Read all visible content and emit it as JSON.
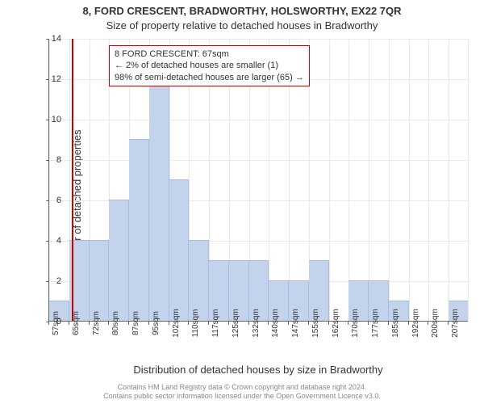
{
  "title": "8, FORD CRESCENT, BRADWORTHY, HOLSWORTHY, EX22 7QR",
  "subtitle": "Size of property relative to detached houses in Bradworthy",
  "ylabel": "Number of detached properties",
  "xlabel": "Distribution of detached houses by size in Bradworthy",
  "footer_line1": "Contains HM Land Registry data © Crown copyright and database right 2024.",
  "footer_line2": "Contains public sector information licensed under the Open Government Licence v3.0.",
  "chart": {
    "type": "histogram",
    "ylim": [
      0,
      14
    ],
    "ytick_step": 2,
    "tick_fontsize": 11,
    "xtick_labels": [
      "57sqm",
      "65sqm",
      "72sqm",
      "80sqm",
      "87sqm",
      "95sqm",
      "102sqm",
      "110sqm",
      "117sqm",
      "125sqm",
      "132sqm",
      "140sqm",
      "147sqm",
      "155sqm",
      "162sqm",
      "170sqm",
      "177sqm",
      "185sqm",
      "192sqm",
      "200sqm",
      "207sqm"
    ],
    "bar_values": [
      1,
      4,
      4,
      6,
      9,
      12,
      7,
      4,
      3,
      3,
      3,
      2,
      2,
      3,
      0,
      2,
      2,
      1,
      0,
      0,
      1
    ],
    "bar_color": "#c3d3ec",
    "bar_border_color": "#a9bde0",
    "background_color": "#ffffff",
    "grid_color": "#e8e8e8",
    "marker_color": "#cc0000",
    "marker_position_index": 1.15
  },
  "annotation": {
    "line1": "8 FORD CRESCENT: 67sqm",
    "line2": "← 2% of detached houses are smaller (1)",
    "line3": "98% of semi-detached houses are larger (65) →",
    "border_color": "#cc0000",
    "fontsize": 11
  }
}
